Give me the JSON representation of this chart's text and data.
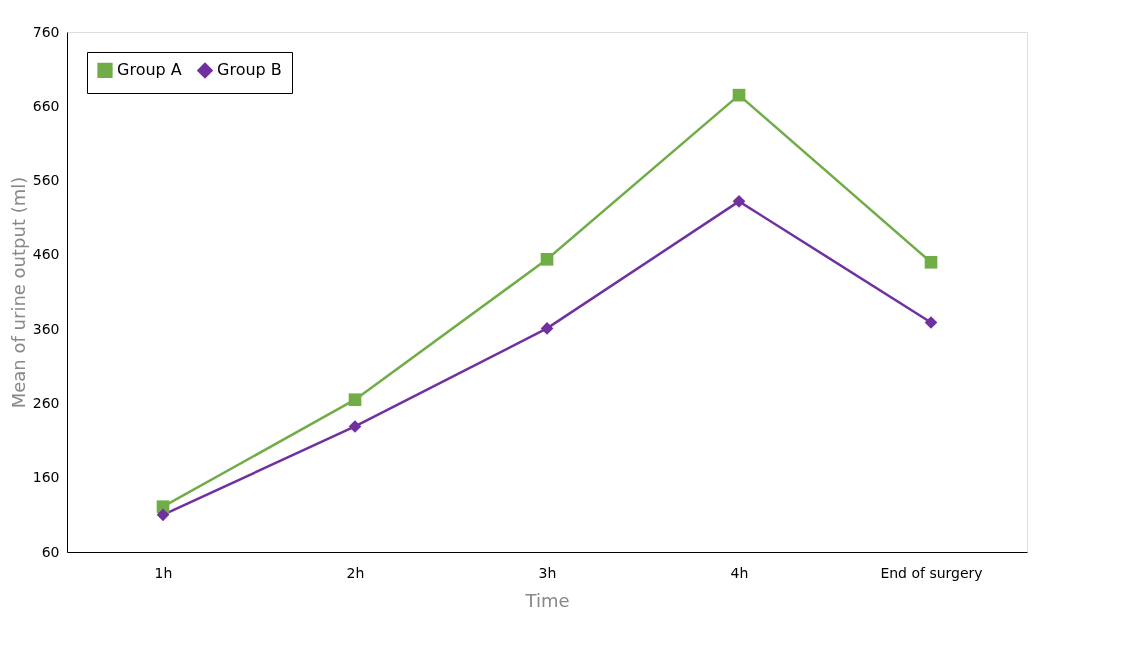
{
  "chart_data": {
    "type": "line",
    "xlabel": "Time",
    "ylabel": "Mean of urine output  (ml)",
    "categories": [
      "1h",
      "2h",
      "3h",
      "4h",
      "End of surgery"
    ],
    "series": [
      {
        "name": "Group A",
        "color": "#70ad47",
        "marker": "square",
        "values": [
          121,
          265,
          454,
          675,
          450
        ]
      },
      {
        "name": "Group B",
        "color": "#7030a0",
        "marker": "diamond",
        "values": [
          110,
          229,
          361,
          532,
          369
        ]
      }
    ],
    "ylim": [
      60,
      760
    ],
    "yticks": [
      60,
      160,
      260,
      360,
      460,
      560,
      660,
      760
    ],
    "grid": false,
    "legend": "top left",
    "line_style": "solid"
  }
}
